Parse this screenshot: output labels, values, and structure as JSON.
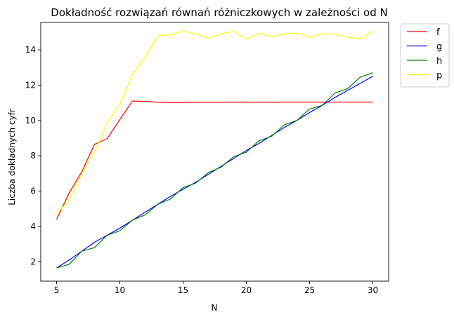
{
  "chart_data": {
    "type": "line",
    "title": "Dokładność rozwiązań równań różniczkowych w zależności od N",
    "xlabel": "N",
    "ylabel": "Liczba dokładnych cyfr",
    "xlim": [
      3.75,
      31.25
    ],
    "ylim": [
      0.9,
      15.55
    ],
    "xticks": [
      5,
      10,
      15,
      20,
      25,
      30
    ],
    "yticks": [
      2,
      4,
      6,
      8,
      10,
      12,
      14
    ],
    "grid": false,
    "legend_position": "outside-top-right",
    "x": [
      5,
      6,
      7,
      8,
      9,
      10,
      11,
      12,
      13,
      14,
      15,
      16,
      17,
      18,
      19,
      20,
      21,
      22,
      23,
      24,
      25,
      26,
      27,
      28,
      29,
      30
    ],
    "series": [
      {
        "name": "f",
        "color": "#ff0000",
        "values": [
          4.4,
          5.9,
          7.1,
          8.65,
          8.97,
          10.05,
          11.1,
          11.08,
          11.03,
          11.02,
          11.02,
          11.03,
          11.03,
          11.03,
          11.03,
          11.04,
          11.03,
          11.03,
          11.04,
          11.04,
          11.04,
          11.04,
          11.04,
          11.04,
          11.04,
          11.04
        ]
      },
      {
        "name": "g",
        "color": "#0000ff",
        "values": [
          1.65,
          2.1,
          2.6,
          3.1,
          3.5,
          3.9,
          4.35,
          4.8,
          5.25,
          5.7,
          6.1,
          6.5,
          6.95,
          7.4,
          7.85,
          8.3,
          8.7,
          9.15,
          9.6,
          10.0,
          10.45,
          10.85,
          11.3,
          11.7,
          12.1,
          12.5
        ]
      },
      {
        "name": "h",
        "color": "#008000",
        "values": [
          1.65,
          1.85,
          2.6,
          2.8,
          3.5,
          3.75,
          4.35,
          4.65,
          5.25,
          5.55,
          6.2,
          6.45,
          7.05,
          7.35,
          7.95,
          8.2,
          8.85,
          9.1,
          9.75,
          10.0,
          10.65,
          10.85,
          11.55,
          11.8,
          12.45,
          12.7
        ]
      },
      {
        "name": "p",
        "color": "#ffff00",
        "values": [
          4.7,
          5.5,
          7.0,
          8.2,
          9.9,
          10.9,
          12.6,
          13.6,
          14.8,
          14.85,
          15.05,
          14.9,
          14.65,
          14.9,
          15.05,
          14.6,
          14.95,
          14.75,
          14.9,
          14.95,
          14.7,
          14.9,
          14.9,
          14.7,
          14.65,
          15.05
        ]
      }
    ]
  }
}
